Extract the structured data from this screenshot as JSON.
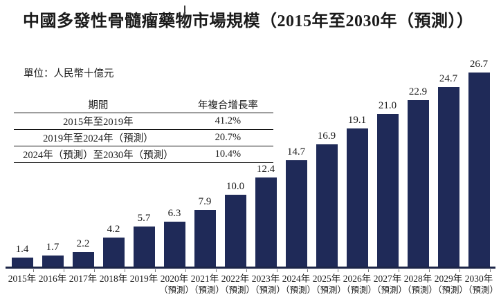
{
  "title": "中國多發性骨髓瘤藥物市場規模（2015年至2030年（預測））",
  "unit_label": "單位：人民幣十億元",
  "table": {
    "headers": [
      "期間",
      "年複合增長率"
    ],
    "rows": [
      [
        "2015年至2019年",
        "41.2%"
      ],
      [
        "2019年至2024年（預測）",
        "20.7%"
      ],
      [
        "2024年（預測）至2030年（預測）",
        "10.4%"
      ]
    ]
  },
  "chart_data": {
    "type": "bar",
    "title": "中國多發性骨髓瘤藥物市場規模（2015年至2030年（預測））",
    "unit": "人民幣十億元",
    "xlabel": "",
    "ylabel": "人民幣十億元",
    "ylim": [
      0,
      28
    ],
    "grid": false,
    "legend_position": "none",
    "categories": [
      "2015年",
      "2016年",
      "2017年",
      "2018年",
      "2019年",
      "2020年",
      "2021年",
      "2022年",
      "2023年",
      "2024年",
      "2025年",
      "2026年",
      "2027年",
      "2028年",
      "2029年",
      "2030年"
    ],
    "category_sublabels": [
      "",
      "",
      "",
      "",
      "",
      "（預測）",
      "（預測）",
      "（預測）",
      "（預測）",
      "（預測）",
      "（預測）",
      "（預測）",
      "（預測）",
      "（預測）",
      "（預測）",
      "（預測）"
    ],
    "values": [
      1.4,
      1.7,
      2.2,
      4.2,
      5.7,
      6.3,
      7.9,
      10.0,
      12.4,
      14.7,
      16.9,
      19.1,
      21.0,
      22.9,
      24.7,
      26.7
    ],
    "value_labels": [
      "1.4",
      "1.7",
      "2.2",
      "4.2",
      "5.7",
      "6.3",
      "7.9",
      "10.0",
      "12.4",
      "14.7",
      "16.9",
      "19.1",
      "21.0",
      "22.9",
      "24.7",
      "26.7"
    ],
    "bar_color": "#1f2a58",
    "axis_color": "#1c2547",
    "text_color": "#1a1a1a"
  }
}
